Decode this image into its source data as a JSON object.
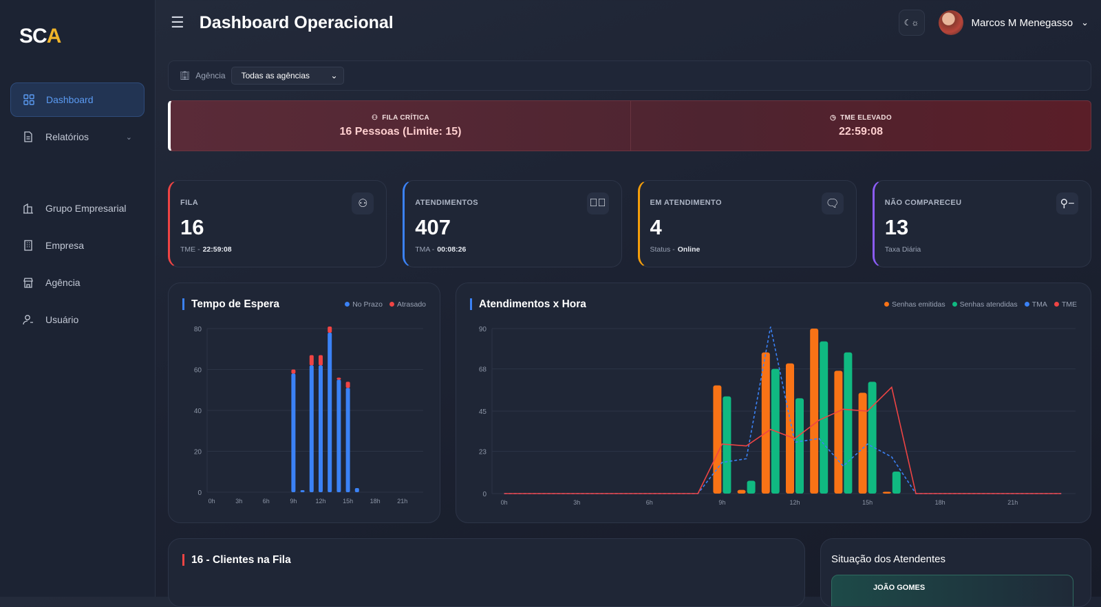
{
  "sidebar": {
    "logo": "SCA",
    "items": [
      {
        "label": "Dashboard",
        "icon": "grid-icon",
        "active": true
      },
      {
        "label": "Relatórios",
        "icon": "document-icon",
        "expandable": true
      },
      {
        "label": "Grupo Empresarial",
        "icon": "buildings-icon"
      },
      {
        "label": "Empresa",
        "icon": "building-icon"
      },
      {
        "label": "Agência",
        "icon": "store-icon"
      },
      {
        "label": "Usuário",
        "icon": "user-icon"
      }
    ]
  },
  "header": {
    "title": "Dashboard Operacional",
    "user_name": "Marcos M Menegasso",
    "theme_toggle": "☾☼"
  },
  "filter": {
    "label": "Agência",
    "selected": "Todas as agências"
  },
  "alerts": [
    {
      "label": "FILA CRÍTICA",
      "value": "16 Pessoas (Limite: 15)",
      "icon": "users-icon"
    },
    {
      "label": "TME ELEVADO",
      "value": "22:59:08",
      "icon": "clock-icon"
    }
  ],
  "kpis": [
    {
      "label": "FILA",
      "value": "16",
      "sub_label": "TME -",
      "sub_value": "22:59:08",
      "color": "#ef4444",
      "icon": "users-icon"
    },
    {
      "label": "ATENDIMENTOS",
      "value": "407",
      "sub_label": "TMA -",
      "sub_value": "00:08:26",
      "color": "#3b82f6",
      "icon": "check-circle-icon"
    },
    {
      "label": "EM ATENDIMENTO",
      "value": "4",
      "sub_label": "Status -",
      "sub_value": "Online",
      "color": "#f59e0b",
      "icon": "chat-icon"
    },
    {
      "label": "NÃO COMPARECEU",
      "value": "13",
      "sub_label": "Taxa Diária",
      "sub_value": "",
      "color": "#8b5cf6",
      "icon": "user-minus-icon"
    }
  ],
  "chart_data": [
    {
      "type": "bar",
      "stacked": true,
      "title": "Tempo de Espera",
      "ylim": [
        0,
        80
      ],
      "yticks": [
        0,
        20,
        40,
        60,
        80
      ],
      "xticks": [
        "0h",
        "3h",
        "6h",
        "9h",
        "12h",
        "15h",
        "18h",
        "21h"
      ],
      "categories": [
        "9h",
        "10h",
        "11h",
        "12h",
        "13h",
        "14h",
        "15h",
        "16h"
      ],
      "series": [
        {
          "name": "No Prazo",
          "color": "#3b82f6",
          "values": [
            58,
            1,
            62,
            62,
            78,
            55,
            51,
            2
          ]
        },
        {
          "name": "Atrasado",
          "color": "#ef4444",
          "values": [
            2,
            0,
            5,
            5,
            3,
            1,
            3,
            0
          ]
        }
      ],
      "grid": true,
      "legend": "top-right"
    },
    {
      "type": "bar+line",
      "title": "Atendimentos x Hora",
      "ylim": [
        0,
        90
      ],
      "yticks": [
        0,
        23,
        45,
        68,
        90
      ],
      "xticks": [
        "0h",
        "3h",
        "6h",
        "9h",
        "12h",
        "15h",
        "18h",
        "21h"
      ],
      "x": [
        "0h",
        "1h",
        "2h",
        "3h",
        "4h",
        "5h",
        "6h",
        "7h",
        "8h",
        "9h",
        "10h",
        "11h",
        "12h",
        "13h",
        "14h",
        "15h",
        "16h",
        "17h",
        "18h",
        "19h",
        "20h",
        "21h",
        "22h",
        "23h"
      ],
      "series": [
        {
          "name": "Senhas emitidas",
          "kind": "bar",
          "color": "#f97316",
          "values": [
            0,
            0,
            0,
            0,
            0,
            0,
            0,
            0,
            0,
            59,
            2,
            77,
            71,
            90,
            67,
            55,
            1,
            0,
            0,
            0,
            0,
            0,
            0,
            0
          ]
        },
        {
          "name": "Senhas atendidas",
          "kind": "bar",
          "color": "#10b981",
          "values": [
            0,
            0,
            0,
            0,
            0,
            0,
            0,
            0,
            0,
            53,
            7,
            68,
            52,
            83,
            77,
            61,
            12,
            0,
            0,
            0,
            0,
            0,
            0,
            0
          ]
        },
        {
          "name": "TMA",
          "kind": "line",
          "dashed": true,
          "color": "#3b82f6",
          "values": [
            0,
            0,
            0,
            0,
            0,
            0,
            0,
            0,
            0,
            17,
            19,
            91,
            28,
            30,
            15,
            27,
            20,
            0,
            0,
            0,
            0,
            0,
            0,
            0
          ]
        },
        {
          "name": "TME",
          "kind": "line",
          "color": "#ef4444",
          "values": [
            0,
            0,
            0,
            0,
            0,
            0,
            0,
            0,
            0,
            27,
            26,
            35,
            30,
            40,
            46,
            45,
            58,
            0,
            0,
            0,
            0,
            0,
            0,
            0
          ]
        }
      ],
      "grid": true,
      "legend": "top-right"
    }
  ],
  "queue_panel": {
    "title": "16 - Clientes na Fila"
  },
  "attendants_panel": {
    "title": "Situação dos Atendentes",
    "first_item": "JOÃO GOMES"
  }
}
